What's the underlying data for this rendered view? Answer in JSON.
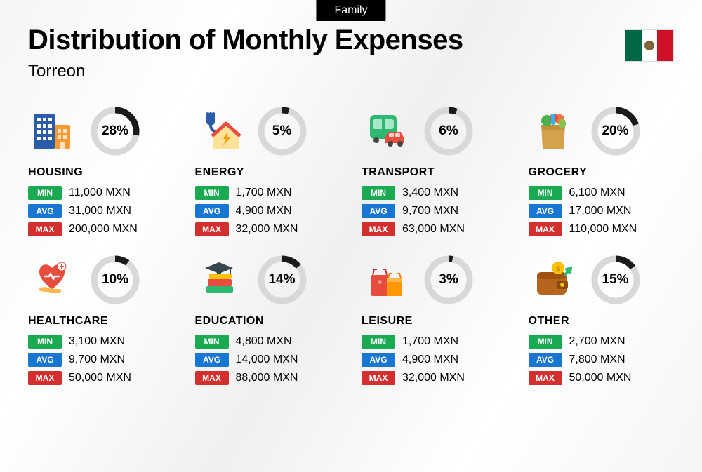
{
  "tag": "Family",
  "title": "Distribution of Monthly Expenses",
  "subtitle": "Torreon",
  "currency": "MXN",
  "labels": {
    "min": "MIN",
    "avg": "AVG",
    "max": "MAX"
  },
  "colors": {
    "min_badge": "#1aab52",
    "avg_badge": "#1976d2",
    "max_badge": "#d32f2f",
    "ring_fg": "#1a1a1a",
    "ring_bg": "#d8d8d8",
    "tag_bg": "#000000"
  },
  "flag": {
    "left": "#006847",
    "center": "#ffffff",
    "right": "#ce1126"
  },
  "categories": [
    {
      "key": "housing",
      "name": "HOUSING",
      "percent": 28,
      "min": "11,000",
      "avg": "31,000",
      "max": "200,000",
      "icon": "building"
    },
    {
      "key": "energy",
      "name": "ENERGY",
      "percent": 5,
      "min": "1,700",
      "avg": "4,900",
      "max": "32,000",
      "icon": "energy-house"
    },
    {
      "key": "transport",
      "name": "TRANSPORT",
      "percent": 6,
      "min": "3,400",
      "avg": "9,700",
      "max": "63,000",
      "icon": "bus-car"
    },
    {
      "key": "grocery",
      "name": "GROCERY",
      "percent": 20,
      "min": "6,100",
      "avg": "17,000",
      "max": "110,000",
      "icon": "grocery-bag"
    },
    {
      "key": "healthcare",
      "name": "HEALTHCARE",
      "percent": 10,
      "min": "3,100",
      "avg": "9,700",
      "max": "50,000",
      "icon": "heart-hand"
    },
    {
      "key": "education",
      "name": "EDUCATION",
      "percent": 14,
      "min": "4,800",
      "avg": "14,000",
      "max": "88,000",
      "icon": "books-cap"
    },
    {
      "key": "leisure",
      "name": "LEISURE",
      "percent": 3,
      "min": "1,700",
      "avg": "4,900",
      "max": "32,000",
      "icon": "shopping-bags"
    },
    {
      "key": "other",
      "name": "OTHER",
      "percent": 15,
      "min": "2,700",
      "avg": "7,800",
      "max": "50,000",
      "icon": "wallet"
    }
  ]
}
